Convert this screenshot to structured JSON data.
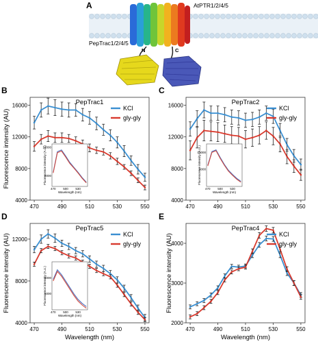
{
  "colors": {
    "kcl": "#3a8fd1",
    "glygly": "#d83a2e",
    "inset_kcl": "#4a6fbf",
    "inset_glygly": "#d24a3e",
    "membrane_head": "#cfe0ee",
    "membrane_tail": "#b7c9d8"
  },
  "panel_a": {
    "letter": "A",
    "transporter_label": "AtPTR1/2/4/5",
    "sensor_label": "PepTrac1/2/4/5",
    "n_label": "N",
    "c_label": "C",
    "icons": [
      "membrane-bilayer",
      "transporter-helix-bundle",
      "gfp-barrel-yellow",
      "gfp-barrel-blue"
    ]
  },
  "chart_data": [
    {
      "panel": "B",
      "type": "line",
      "title": "PepTrac1",
      "xlabel": "",
      "ylabel": "Fluorescence intensity (AU)",
      "xlim": [
        467,
        553
      ],
      "ylim": [
        4000,
        17000
      ],
      "xticks": [
        470,
        490,
        510,
        530,
        550
      ],
      "yticks": [
        4000,
        8000,
        12000,
        16000
      ],
      "legend": [
        "KCl",
        "gly-gly"
      ],
      "series": [
        {
          "name": "KCl",
          "x": [
            470,
            475,
            480,
            485,
            490,
            495,
            500,
            505,
            510,
            515,
            520,
            525,
            530,
            535,
            540,
            545,
            550
          ],
          "y": [
            13800,
            15400,
            15900,
            15700,
            15500,
            15400,
            15400,
            14800,
            14400,
            13700,
            12900,
            12200,
            11300,
            10200,
            9000,
            7900,
            6900
          ],
          "err": [
            800,
            900,
            1000,
            1000,
            900,
            900,
            800,
            800,
            800,
            800,
            700,
            700,
            700,
            700,
            600,
            600,
            500
          ]
        },
        {
          "name": "gly-gly",
          "x": [
            470,
            475,
            480,
            485,
            490,
            495,
            500,
            505,
            510,
            515,
            520,
            525,
            530,
            535,
            540,
            545,
            550
          ],
          "y": [
            10800,
            11700,
            12100,
            11900,
            11900,
            11800,
            11500,
            11100,
            10600,
            10300,
            10100,
            9600,
            8900,
            8200,
            7400,
            6500,
            5600
          ],
          "err": [
            600,
            600,
            700,
            600,
            600,
            500,
            500,
            500,
            500,
            400,
            400,
            400,
            400,
            300,
            300,
            300,
            300
          ]
        }
      ],
      "inset": {
        "ylabel": "Fluorescence intensity (A.U.)",
        "xlabel": "Wavelength (nm)",
        "xticks": [
          470,
          500,
          530
        ],
        "yticks": [
          8000,
          16000
        ],
        "ylim": [
          5000,
          17000
        ],
        "series": [
          {
            "name": "KCl",
            "x": [
              470,
              480,
              490,
              500,
              510,
              520,
              530,
              540,
              550
            ],
            "y": [
              9000,
              14800,
              15300,
              13600,
              11800,
              10400,
              9000,
              7500,
              6200
            ]
          },
          {
            "name": "gly-gly",
            "x": [
              470,
              480,
              490,
              500,
              510,
              520,
              530,
              540,
              550
            ],
            "y": [
              8800,
              14500,
              15000,
              13300,
              11500,
              10200,
              8800,
              7300,
              6000
            ]
          }
        ]
      }
    },
    {
      "panel": "C",
      "type": "line",
      "title": "PepTrac2",
      "xlabel": "",
      "ylabel": "",
      "xlim": [
        467,
        553
      ],
      "ylim": [
        4000,
        17000
      ],
      "xticks": [
        470,
        490,
        510,
        530,
        550
      ],
      "yticks": [
        4000,
        8000,
        12000,
        16000
      ],
      "legend": [
        "KCl",
        "gly-gly"
      ],
      "series": [
        {
          "name": "KCl",
          "x": [
            470,
            475,
            480,
            485,
            490,
            495,
            500,
            505,
            510,
            515,
            520,
            525,
            530,
            535,
            540,
            545,
            550
          ],
          "y": [
            13000,
            14300,
            15400,
            15000,
            15000,
            14800,
            14500,
            14400,
            14100,
            14200,
            14500,
            15000,
            14600,
            12800,
            11000,
            9600,
            8500
          ],
          "err": [
            900,
            1000,
            1000,
            900,
            900,
            900,
            900,
            900,
            900,
            900,
            900,
            900,
            900,
            900,
            800,
            800,
            700
          ]
        },
        {
          "name": "gly-gly",
          "x": [
            470,
            475,
            480,
            485,
            490,
            495,
            500,
            505,
            510,
            515,
            520,
            525,
            530,
            535,
            540,
            545,
            550
          ],
          "y": [
            10300,
            11900,
            12800,
            12700,
            12600,
            12400,
            12200,
            12100,
            11700,
            11900,
            12200,
            12800,
            12100,
            11100,
            9500,
            8300,
            7200
          ],
          "err": [
            1200,
            1300,
            1300,
            1200,
            1200,
            1100,
            1100,
            1100,
            1100,
            1100,
            1100,
            1100,
            1100,
            1000,
            900,
            800,
            700
          ]
        }
      ],
      "inset": {
        "ylabel": "Fluorescence intensity (A.U.)",
        "xlabel": "Wavelength (nm)",
        "xticks": [
          470,
          500,
          530
        ],
        "yticks": [
          8000,
          12000
        ],
        "ylim": [
          4000,
          14000
        ],
        "series": [
          {
            "name": "KCl",
            "x": [
              470,
              480,
              490,
              500,
              510,
              520,
              530,
              540,
              550
            ],
            "y": [
              9000,
              12200,
              12600,
              10800,
              9200,
              7800,
              6800,
              5900,
              5200
            ]
          },
          {
            "name": "gly-gly",
            "x": [
              470,
              480,
              490,
              500,
              510,
              520,
              530,
              540,
              550
            ],
            "y": [
              8800,
              12000,
              12400,
              10600,
              9000,
              7600,
              6600,
              5700,
              5000
            ]
          }
        ]
      }
    },
    {
      "panel": "D",
      "type": "line",
      "title": "PepTrac5",
      "xlabel": "Wavelength (nm)",
      "ylabel": "Fluorescence intensity (AU)",
      "xlim": [
        467,
        553
      ],
      "ylim": [
        4000,
        13500
      ],
      "xticks": [
        470,
        490,
        510,
        530,
        550
      ],
      "yticks": [
        4000,
        8000,
        12000
      ],
      "legend": [
        "KCl",
        "gly-gly"
      ],
      "series": [
        {
          "name": "KCl",
          "x": [
            470,
            475,
            480,
            485,
            490,
            495,
            500,
            505,
            510,
            515,
            520,
            525,
            530,
            535,
            540,
            545,
            550
          ],
          "y": [
            11000,
            12000,
            12500,
            12100,
            11600,
            11300,
            10900,
            10600,
            10100,
            9600,
            9200,
            8700,
            8100,
            7300,
            6400,
            5400,
            4500
          ],
          "err": [
            300,
            400,
            400,
            400,
            300,
            300,
            300,
            300,
            300,
            300,
            300,
            300,
            300,
            300,
            300,
            300,
            300
          ]
        },
        {
          "name": "gly-gly",
          "x": [
            470,
            475,
            480,
            485,
            490,
            495,
            500,
            505,
            510,
            515,
            520,
            525,
            530,
            535,
            540,
            545,
            550
          ],
          "y": [
            9600,
            10900,
            11300,
            11100,
            10700,
            10400,
            10200,
            9800,
            9400,
            9000,
            8700,
            8400,
            7600,
            6700,
            5800,
            5000,
            4300
          ],
          "err": [
            200,
            200,
            200,
            200,
            200,
            200,
            200,
            200,
            200,
            200,
            200,
            200,
            200,
            200,
            200,
            200,
            200
          ]
        }
      ],
      "inset": {
        "ylabel": "Fluorescence intensity (A.U.)",
        "xlabel": "Wavelength (nm)",
        "xticks": [
          470,
          500,
          530
        ],
        "yticks": [
          6000,
          8000
        ],
        "ylim": [
          4000,
          10000
        ],
        "series": [
          {
            "name": "KCl",
            "x": [
              470,
              480,
              490,
              500,
              510,
              520,
              530,
              540,
              550
            ],
            "y": [
              7800,
              9000,
              8400,
              7600,
              6800,
              6000,
              5300,
              4800,
              4400
            ]
          },
          {
            "name": "gly-gly",
            "x": [
              470,
              480,
              490,
              500,
              510,
              520,
              530,
              540,
              550
            ],
            "y": [
              7600,
              8800,
              8200,
              7400,
              6600,
              5800,
              5100,
              4600,
              4200
            ]
          }
        ]
      }
    },
    {
      "panel": "E",
      "type": "line",
      "title": "PepTrac4",
      "xlabel": "Wavelength (nm)",
      "ylabel": "Fluorescence intensity (AU)",
      "xlim": [
        467,
        553
      ],
      "ylim": [
        2000,
        4500
      ],
      "xticks": [
        470,
        490,
        510,
        530,
        550
      ],
      "yticks": [
        2000,
        3000,
        4000
      ],
      "legend": [
        "KCl",
        "gly-gly"
      ],
      "series": [
        {
          "name": "KCl",
          "x": [
            470,
            475,
            480,
            485,
            490,
            495,
            500,
            505,
            510,
            515,
            520,
            525,
            530,
            535,
            540,
            545,
            550
          ],
          "y": [
            2400,
            2480,
            2560,
            2700,
            2880,
            3180,
            3420,
            3400,
            3430,
            3700,
            3960,
            4120,
            4110,
            3700,
            3250,
            3000,
            2700
          ],
          "err": [
            50,
            50,
            50,
            50,
            50,
            50,
            50,
            50,
            50,
            60,
            60,
            60,
            60,
            60,
            60,
            60,
            60
          ]
        },
        {
          "name": "gly-gly",
          "x": [
            470,
            475,
            480,
            485,
            490,
            495,
            500,
            505,
            510,
            515,
            520,
            525,
            530,
            535,
            540,
            545,
            550
          ],
          "y": [
            2150,
            2230,
            2380,
            2540,
            2760,
            3080,
            3280,
            3360,
            3400,
            3800,
            4200,
            4370,
            4330,
            3850,
            3350,
            3000,
            2650
          ],
          "err": [
            50,
            50,
            50,
            50,
            50,
            50,
            50,
            50,
            50,
            60,
            70,
            70,
            70,
            60,
            60,
            60,
            60
          ]
        }
      ]
    }
  ]
}
